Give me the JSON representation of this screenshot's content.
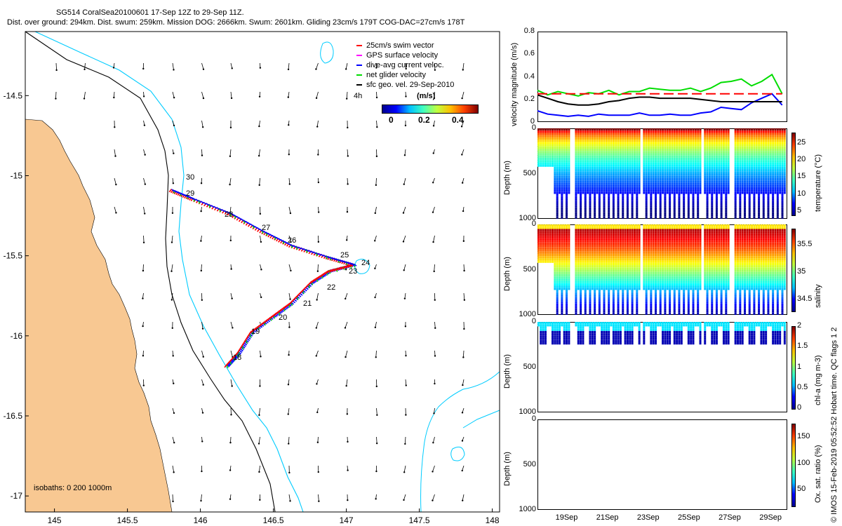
{
  "header": {
    "title_line1": "SG514 CoralSea20100601 17-Sep 12Z to 29-Sep 11Z.",
    "title_line2": "Dist. over ground: 294km. Dist. swum: 259km. Mission DOG: 2666km. Swum: 2601km. Gliding 23cm/s 179T COG-DAC=27cm/s 178T"
  },
  "colors": {
    "land": "#f8c892",
    "isobath_200": "#00ccff",
    "isobath_1000": "#000000",
    "swim": "#ff0000",
    "gps": "#ff00ff",
    "dac": "#0000ff",
    "net": "#00dd00",
    "sfc": "#000000"
  },
  "map": {
    "legend": [
      {
        "label": "25cm/s swim vector",
        "color": "#ff0000"
      },
      {
        "label": "GPS surface velocity",
        "color": "#ff00ff"
      },
      {
        "label": "dive-avg current veloc.",
        "color": "#0000ff"
      },
      {
        "label": "net glider velocity",
        "color": "#00dd00"
      },
      {
        "label": "sfc geo. vel. 29-Sep-2010",
        "color": "#000000"
      }
    ],
    "annotation_4h": "4h",
    "colorbar_unit": "(m/s)",
    "colorbar_ticks": [
      "0",
      "0.2",
      "0.4"
    ],
    "isobaths_label": "isobaths: 0   200  1000m",
    "day_labels": [
      "30",
      "29",
      "28",
      "27",
      "26",
      "25",
      "24",
      "23",
      "22",
      "21",
      "20",
      "19",
      "18"
    ]
  },
  "chart_data": [
    {
      "type": "scatter",
      "name": "glider track map",
      "x_ticks": [
        "145",
        "145.5",
        "146",
        "146.5",
        "147",
        "147.5",
        "148"
      ],
      "y_ticks": [
        "-14.5",
        "-15",
        "-15.5",
        "-16",
        "-16.5",
        "-17"
      ],
      "xlim": [
        144.8,
        148.05
      ],
      "ylim": [
        -17.1,
        -14.1
      ],
      "track": [
        {
          "x": 146.18,
          "y": -16.18
        },
        {
          "x": 146.26,
          "y": -16.1
        },
        {
          "x": 146.35,
          "y": -15.97
        },
        {
          "x": 146.5,
          "y": -15.87
        },
        {
          "x": 146.62,
          "y": -15.79
        },
        {
          "x": 146.76,
          "y": -15.66
        },
        {
          "x": 146.88,
          "y": -15.59
        },
        {
          "x": 147.05,
          "y": -15.55
        },
        {
          "x": 146.86,
          "y": -15.5
        },
        {
          "x": 146.62,
          "y": -15.43
        },
        {
          "x": 146.42,
          "y": -15.34
        },
        {
          "x": 146.2,
          "y": -15.23
        },
        {
          "x": 145.95,
          "y": -15.14
        },
        {
          "x": 145.79,
          "y": -15.08
        }
      ]
    },
    {
      "type": "line",
      "name": "velocity magnitude",
      "ylabel": "velocity magnitude (m/s)",
      "yticks": [
        "0",
        "0.2",
        "0.4",
        "0.6",
        "0.8"
      ],
      "ylim": [
        0,
        0.8
      ],
      "x": [
        "17.5",
        "18",
        "18.5",
        "19",
        "19.5",
        "20",
        "20.5",
        "21",
        "21.5",
        "22",
        "22.5",
        "23",
        "23.5",
        "24",
        "24.5",
        "25",
        "25.5",
        "26",
        "26.5",
        "27",
        "27.5",
        "28",
        "28.5",
        "29",
        "29.5"
      ],
      "series": [
        {
          "color": "#00dd00",
          "values": [
            0.28,
            0.24,
            0.27,
            0.25,
            0.23,
            0.26,
            0.25,
            0.28,
            0.24,
            0.27,
            0.27,
            0.3,
            0.29,
            0.28,
            0.28,
            0.3,
            0.27,
            0.3,
            0.35,
            0.36,
            0.38,
            0.32,
            0.36,
            0.42,
            0.25
          ]
        },
        {
          "color": "#0000ff",
          "values": [
            0.1,
            0.07,
            0.06,
            0.05,
            0.06,
            0.05,
            0.07,
            0.06,
            0.06,
            0.06,
            0.08,
            0.06,
            0.06,
            0.07,
            0.06,
            0.06,
            0.08,
            0.09,
            0.13,
            0.12,
            0.11,
            0.17,
            0.21,
            0.25,
            0.15
          ]
        },
        {
          "color": "#000000",
          "values": [
            0.24,
            0.21,
            0.18,
            0.16,
            0.15,
            0.15,
            0.16,
            0.18,
            0.19,
            0.21,
            0.22,
            0.22,
            0.21,
            0.21,
            0.21,
            0.21,
            0.2,
            0.19,
            0.18,
            0.18,
            0.18,
            0.18,
            0.18,
            0.18,
            0.18
          ]
        },
        {
          "color": "#ff0000",
          "dashed": true,
          "values": [
            0.25,
            0.25,
            0.25,
            0.25,
            0.25,
            0.25,
            0.25,
            0.25,
            0.25,
            0.25,
            0.25,
            0.25,
            0.25,
            0.25,
            0.25,
            0.25,
            0.25,
            0.25,
            0.25,
            0.25,
            0.25,
            0.25,
            0.25,
            0.25,
            0.25
          ]
        }
      ]
    },
    {
      "type": "heatmap",
      "name": "temperature",
      "ylabel": "Depth (m)",
      "yticks": [
        "0",
        "500",
        "1000"
      ],
      "colorbar_label": "temperature (°C)",
      "colorbar_ticks": [
        "25",
        "20",
        "15",
        "10",
        "5"
      ],
      "clim": [
        4,
        28
      ]
    },
    {
      "type": "heatmap",
      "name": "salinity",
      "ylabel": "Depth (m)",
      "yticks": [
        "0",
        "500",
        "1000"
      ],
      "colorbar_label": "salinity",
      "colorbar_ticks": [
        "35.5",
        "35",
        "34.5"
      ],
      "clim": [
        34.3,
        35.8
      ]
    },
    {
      "type": "heatmap",
      "name": "chl-a",
      "ylabel": "Depth (m)",
      "yticks": [
        "0",
        "500",
        "1000"
      ],
      "colorbar_label": "chl-a (mg m-3)",
      "colorbar_ticks": [
        "2",
        "1.5",
        "1",
        "0.5",
        "0"
      ],
      "clim": [
        0,
        2
      ]
    },
    {
      "type": "heatmap",
      "name": "oxygen",
      "ylabel": "Depth (m)",
      "yticks": [
        "0",
        "500",
        "1000"
      ],
      "colorbar_label": "Ox. sat. ratio (%)",
      "colorbar_ticks": [
        "150",
        "100",
        "50"
      ],
      "clim": [
        20,
        175
      ],
      "x_ticks": [
        "19Sep",
        "21Sep",
        "23Sep",
        "25Sep",
        "27Sep",
        "29Sep"
      ]
    }
  ],
  "footer": {
    "imos_note": "© IMOS 15-Feb-2019 05:52:52 Hobart time. QC flags 1  2"
  }
}
